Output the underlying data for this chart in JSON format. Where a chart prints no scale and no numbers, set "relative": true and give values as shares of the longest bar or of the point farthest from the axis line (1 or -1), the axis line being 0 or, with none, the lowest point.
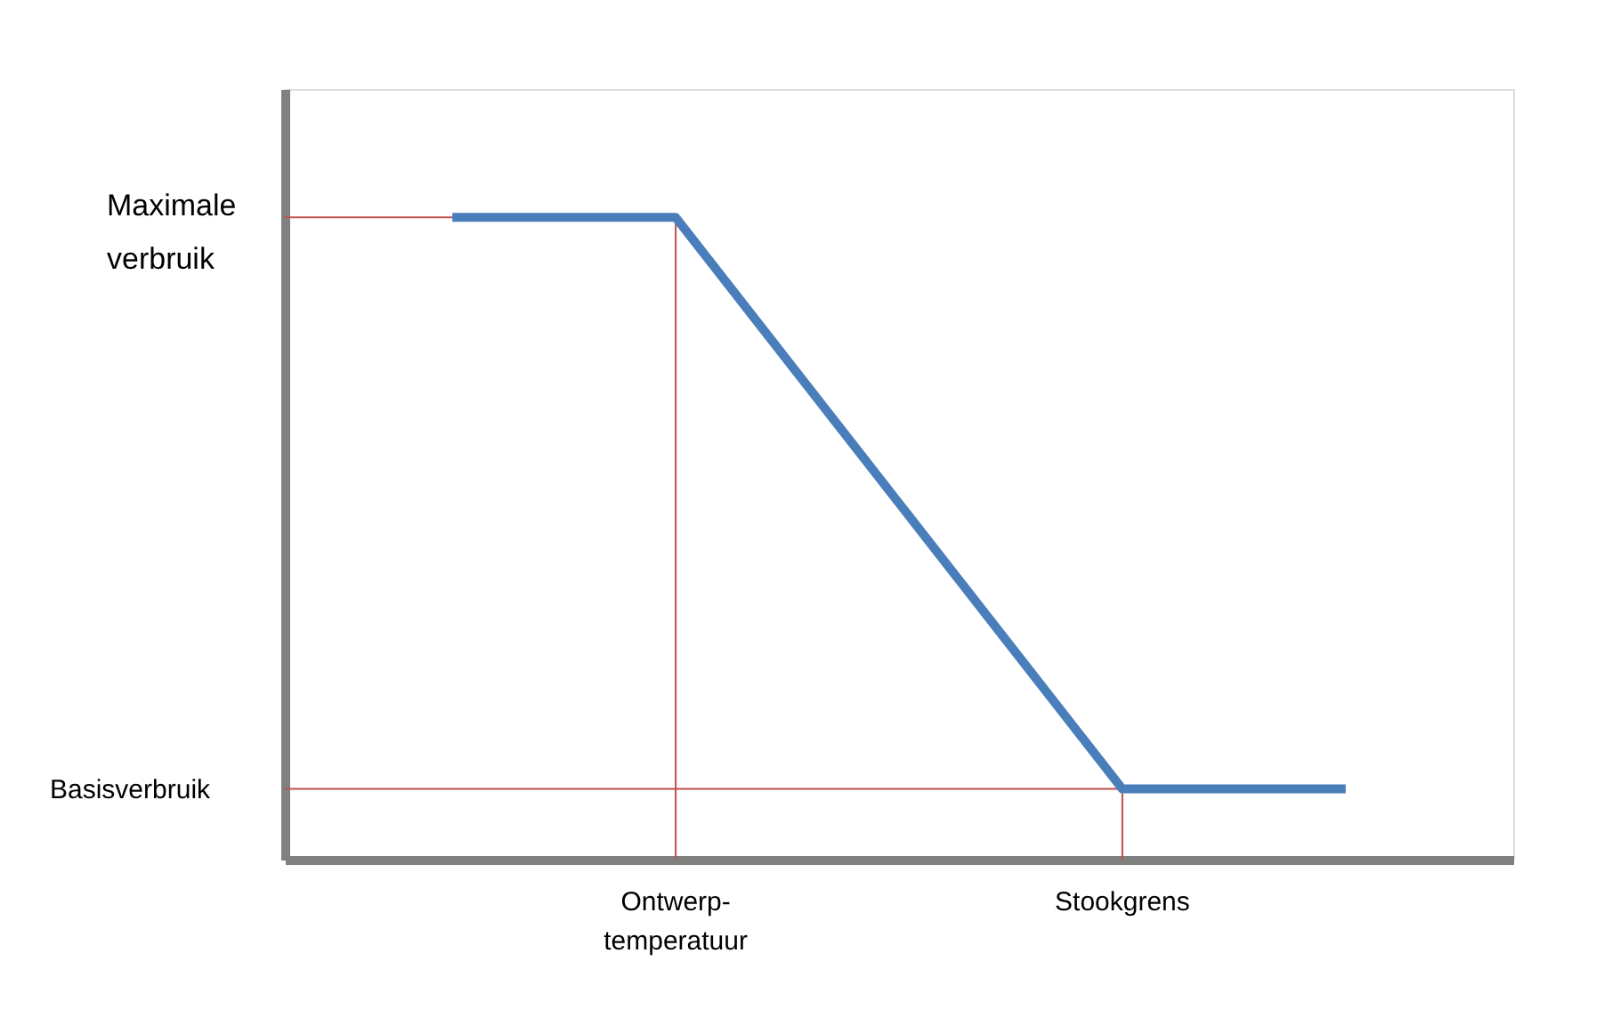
{
  "chart_data": {
    "type": "line",
    "relative": true,
    "categories": [
      null,
      "Ontwerp-\ntemperatuur",
      null,
      "Stookgrens",
      null
    ],
    "series": [
      {
        "color": "#4a7ebb",
        "values": [
          1,
          1,
          0.555,
          0.11,
          0.11
        ]
      }
    ],
    "ref_lines": [
      {
        "axis": "y",
        "value": 1,
        "label": "Maximale\nverbruik",
        "color": "#c0504d"
      },
      {
        "axis": "y",
        "value": 0.11,
        "label": "Basisverbruik",
        "color": "#c0504d"
      },
      {
        "axis": "x",
        "value": "Ontwerp-\ntemperatuur",
        "color": "#c0504d"
      },
      {
        "axis": "x",
        "value": "Stookgrens",
        "color": "#c0504d"
      }
    ],
    "grid": false,
    "marker": "none",
    "line_style": "solid",
    "tick_labels": "x"
  }
}
